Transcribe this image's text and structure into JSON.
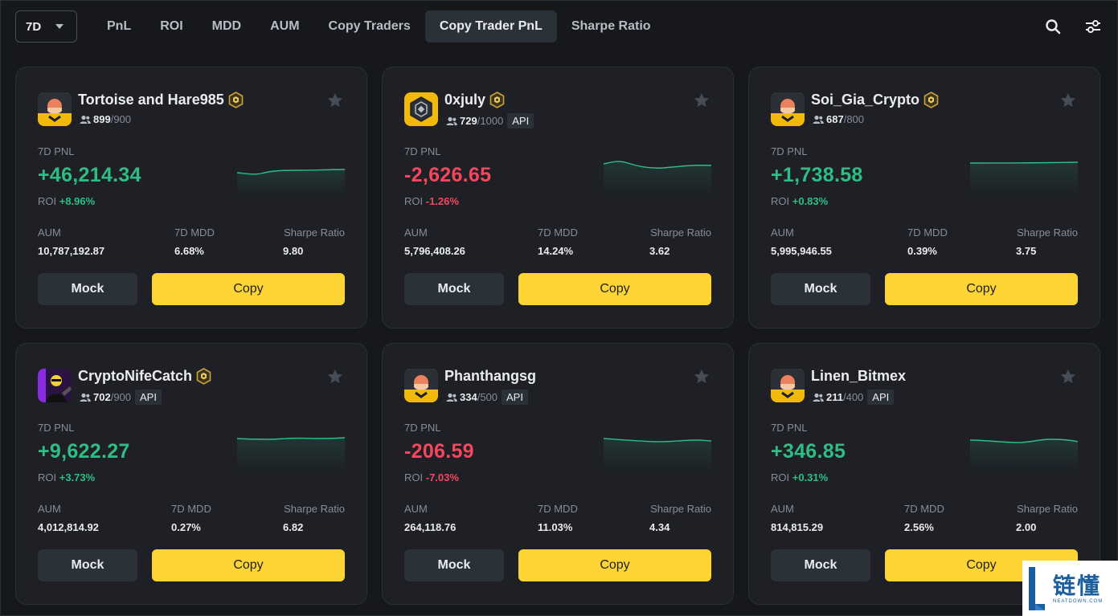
{
  "topbar": {
    "period": "7D",
    "tabs": [
      {
        "label": "PnL",
        "active": false
      },
      {
        "label": "ROI",
        "active": false
      },
      {
        "label": "MDD",
        "active": false
      },
      {
        "label": "AUM",
        "active": false
      },
      {
        "label": "Copy Traders",
        "active": false
      },
      {
        "label": "Copy Trader PnL",
        "active": true
      },
      {
        "label": "Sharpe Ratio",
        "active": false
      }
    ],
    "icons": [
      "search-icon",
      "filter-sliders-icon"
    ]
  },
  "labels": {
    "pnl": "7D PNL",
    "roi": "ROI",
    "aum": "AUM",
    "mdd": "7D MDD",
    "sharpe": "Sharpe Ratio",
    "mock": "Mock",
    "copy": "Copy",
    "api": "API"
  },
  "colors": {
    "positive": "#2ebd85",
    "negative": "#f6465d",
    "accent": "#fcd535"
  },
  "cards": [
    {
      "name": "Tortoise and Hare985",
      "badge": true,
      "followers": "899",
      "max": "/900",
      "api": false,
      "pnl": "+46,214.34",
      "roi": "+8.96%",
      "trend": "positive",
      "aum": "10,787,192.87",
      "mdd": "6.68%",
      "sharpe": "9.80",
      "avatar": "default-avatar"
    },
    {
      "name": "0xjuly",
      "badge": true,
      "followers": "729",
      "max": "/1000",
      "api": true,
      "pnl": "-2,626.65",
      "roi": "-1.26%",
      "trend": "negative",
      "aum": "5,796,408.26",
      "mdd": "14.24%",
      "sharpe": "3.62",
      "avatar": "binance-logo-avatar"
    },
    {
      "name": "Soi_Gia_Crypto",
      "badge": true,
      "followers": "687",
      "max": "/800",
      "api": false,
      "pnl": "+1,738.58",
      "roi": "+0.83%",
      "trend": "positive",
      "aum": "5,995,946.55",
      "mdd": "0.39%",
      "sharpe": "3.75",
      "avatar": "default-avatar"
    },
    {
      "name": "CryptoNifeCatch",
      "badge": true,
      "followers": "702",
      "max": "/900",
      "api": true,
      "pnl": "+9,622.27",
      "roi": "+3.73%",
      "trend": "positive",
      "aum": "4,012,814.92",
      "mdd": "0.27%",
      "sharpe": "6.82",
      "avatar": "photo-avatar"
    },
    {
      "name": "Phanthangsg",
      "badge": false,
      "followers": "334",
      "max": "/500",
      "api": true,
      "pnl": "-206.59",
      "roi": "-7.03%",
      "trend": "negative",
      "aum": "264,118.76",
      "mdd": "11.03%",
      "sharpe": "4.34",
      "avatar": "default-avatar"
    },
    {
      "name": "Linen_Bitmex",
      "badge": false,
      "followers": "211",
      "max": "/400",
      "api": true,
      "pnl": "+346.85",
      "roi": "+0.31%",
      "trend": "positive",
      "aum": "814,815.29",
      "mdd": "2.56%",
      "sharpe": "2.00",
      "avatar": "default-avatar"
    }
  ],
  "watermark": {
    "cn": "链懂",
    "en": "NEATDOWN.COM"
  }
}
